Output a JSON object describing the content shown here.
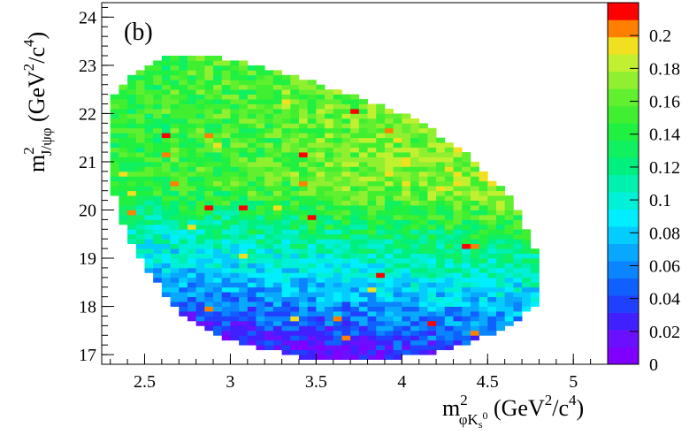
{
  "chart_data": {
    "type": "heatmap",
    "panel_label": "(b)",
    "xlabel": {
      "base": "m",
      "sup": "2",
      "sub": "φK",
      "sub_sub": "s",
      "sub_sup": "0",
      "units": " (GeV",
      "units_sup": "2",
      "units_tail": "/c",
      "units_sup2": "4",
      "close": ")"
    },
    "ylabel": {
      "base": "m",
      "sup": "2",
      "sub": "J/ψφ",
      "units": " (GeV",
      "units_sup": "2",
      "units_tail": "/c",
      "units_sup2": "4",
      "close": ")"
    },
    "xlim": [
      2.25,
      5.2
    ],
    "ylim": [
      16.8,
      24.3
    ],
    "xticks": [
      2.5,
      3,
      3.5,
      4,
      4.5,
      5
    ],
    "xtick_labels": [
      "2.5",
      "3",
      "3.5",
      "4",
      "4.5",
      "5"
    ],
    "yticks": [
      17,
      18,
      19,
      20,
      21,
      22,
      23,
      24
    ],
    "ytick_labels": [
      "17",
      "18",
      "19",
      "20",
      "21",
      "22",
      "23",
      "24"
    ],
    "zlim": [
      0,
      0.22
    ],
    "zticks": [
      0,
      0.02,
      0.04,
      0.06,
      0.08,
      0.1,
      0.12,
      0.14,
      0.16,
      0.18,
      0.2
    ],
    "ztick_labels": [
      "0",
      "0.02",
      "0.04",
      "0.06",
      "0.08",
      "0.1",
      "0.12",
      "0.14",
      "0.16",
      "0.18",
      "0.2"
    ],
    "colorscale": [
      "#7f00ff",
      "#6a10ff",
      "#4020ff",
      "#2040ff",
      "#1060ff",
      "#0a84ff",
      "#08a8ff",
      "#05ccff",
      "#00eeff",
      "#00f0d8",
      "#00f0b0",
      "#00f080",
      "#10f060",
      "#20f040",
      "#40f030",
      "#60f030",
      "#90f030",
      "#c0f030",
      "#f0e020",
      "#ff8000",
      "#ff0000"
    ],
    "grid": false,
    "region": {
      "description": "filled region bounded by Dalitz-plot kinematic limits",
      "boundary_points": [
        [
          2.3,
          22.3
        ],
        [
          2.4,
          22.75
        ],
        [
          2.55,
          23.1
        ],
        [
          2.75,
          23.25
        ],
        [
          3.05,
          23.1
        ],
        [
          3.4,
          22.75
        ],
        [
          3.75,
          22.35
        ],
        [
          4.1,
          21.85
        ],
        [
          4.4,
          21.1
        ],
        [
          4.65,
          20.2
        ],
        [
          4.8,
          19.0
        ],
        [
          4.78,
          18.0
        ],
        [
          4.55,
          17.45
        ],
        [
          4.2,
          17.05
        ],
        [
          3.8,
          16.85
        ],
        [
          3.4,
          16.95
        ],
        [
          3.0,
          17.3
        ],
        [
          2.7,
          17.9
        ],
        [
          2.5,
          18.8
        ],
        [
          2.35,
          19.9
        ],
        [
          2.28,
          21.0
        ]
      ],
      "trend": "values increase from ~0.02 at low y (bottom-center) to ~0.15 at high y"
    }
  }
}
